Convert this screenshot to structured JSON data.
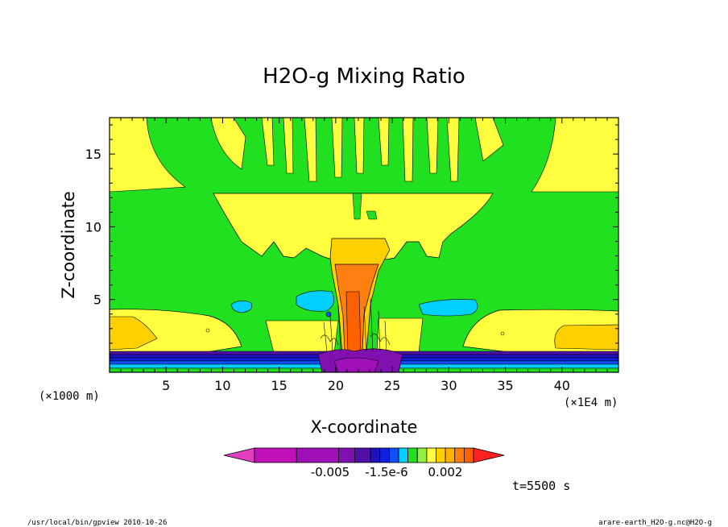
{
  "chart_data": {
    "type": "heatmap",
    "title": "H2O-g Mixing Ratio",
    "xlabel": "X-coordinate",
    "ylabel": "Z-coordinate",
    "x_unit_label": "(×1E4 m)",
    "y_unit_label": "(×1000 m)",
    "x_ticks": [
      "5",
      "10",
      "15",
      "20",
      "25",
      "30",
      "35",
      "40"
    ],
    "y_ticks": [
      "5",
      "10",
      "15"
    ],
    "xlim": [
      0,
      45
    ],
    "ylim": [
      0,
      17.5
    ],
    "colorbar": {
      "colors": [
        "#e040c0",
        "#c010b8",
        "#a010b8",
        "#8010b0",
        "#5010a8",
        "#2010c0",
        "#1020e0",
        "#1050ff",
        "#00d0ff",
        "#20e020",
        "#90f040",
        "#ffff40",
        "#ffd000",
        "#ffb000",
        "#ff8010",
        "#ff6000",
        "#ff2020"
      ],
      "tick_labels": [
        "-0.005",
        "-1.5e-6",
        "0.002"
      ]
    },
    "time_label": "t=5500 s",
    "footer_left": "/usr/local/bin/gpview  2010-10-26",
    "footer_right": "arare-earth_H2O-g.nc@H2O-g"
  }
}
